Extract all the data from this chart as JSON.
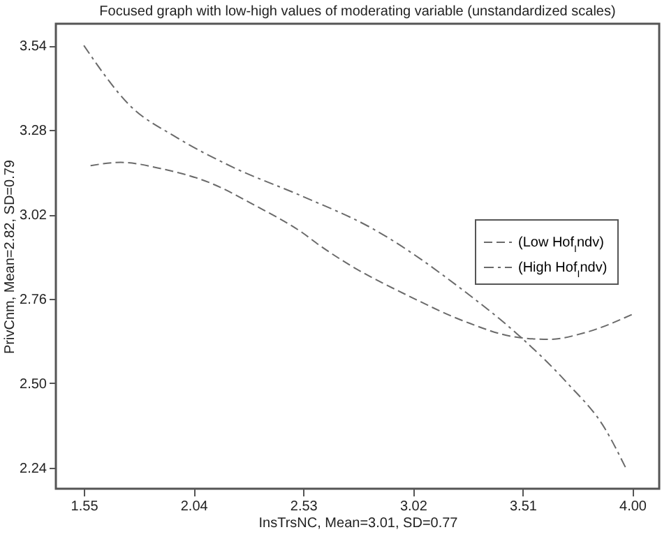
{
  "chart_data": {
    "type": "line",
    "title": "Focused graph with low-high values of moderating variable (unstandardized scales)",
    "xlabel": "InsTrsNC, Mean=3.01, SD=0.77",
    "ylabel": "PrivCnm, Mean=2.82, SD=0.79",
    "xlim": [
      1.425,
      4.12
    ],
    "xticks": [
      1.55,
      2.04,
      2.53,
      3.02,
      3.51,
      {
        "value": 4,
        "label": "4.00"
      }
    ],
    "ylim": [
      2.175,
      3.607
    ],
    "yticks": [
      2.24,
      {
        "value": 2.5,
        "label": "2.50"
      },
      2.76,
      3.02,
      3.28,
      3.54
    ],
    "grid": false,
    "legend": "right",
    "marker": "none",
    "series": [
      {
        "name": "(Low Hof$_{I}$ndv)",
        "color": "#6a6a6a",
        "line_style": "dashed",
        "x": [
          1.58,
          1.715,
          1.9,
          2.11,
          2.316,
          2.525,
          2.608,
          2.733,
          3.003,
          3.252,
          3.48,
          3.626,
          3.79,
          4.0
        ],
        "values": [
          3.17,
          3.18,
          3.16,
          3.118,
          3.047,
          2.964,
          2.922,
          2.866,
          2.768,
          2.69,
          2.642,
          2.635,
          2.656,
          2.712
        ]
      },
      {
        "name": "(High Hof$_{I}$ndv)",
        "color": "#6a6a6a",
        "line_style": "dashdot",
        "x": [
          1.55,
          1.756,
          1.964,
          2.213,
          2.525,
          2.837,
          3.252,
          3.501,
          3.71,
          3.876,
          3.97
        ],
        "values": [
          3.54,
          3.355,
          3.257,
          3.166,
          3.076,
          2.977,
          2.782,
          2.642,
          2.5,
          2.362,
          2.24
        ]
      }
    ]
  }
}
